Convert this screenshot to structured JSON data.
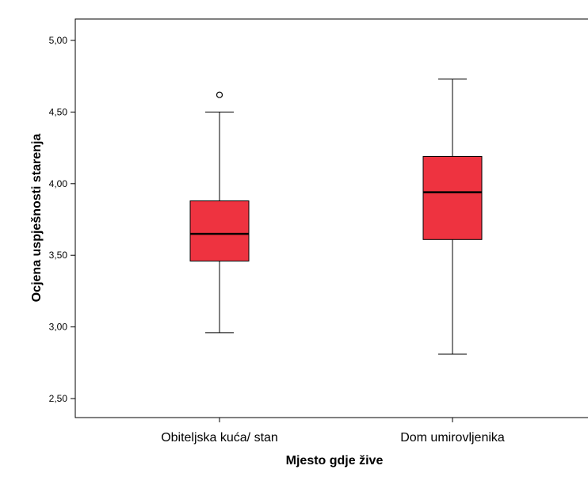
{
  "chart_data": {
    "type": "box",
    "title": "",
    "xlabel": "Mjesto gdje žive",
    "ylabel": "Ocjena uspješnosti starenja",
    "ylim": [
      2.3,
      5.15
    ],
    "yticks": [
      2.5,
      3.0,
      3.5,
      4.0,
      4.5,
      5.0
    ],
    "ytick_labels": [
      "2,50",
      "3,00",
      "3,50",
      "4,00",
      "4,50",
      "5,00"
    ],
    "grid": false,
    "box_color": "#ee3340",
    "categories": [
      "Obiteljska kuća/ stan",
      "Dom umirovljenika"
    ],
    "boxes": [
      {
        "whisker_low": 2.96,
        "q1": 3.46,
        "median": 3.65,
        "q3": 3.88,
        "whisker_high": 4.5,
        "outliers": [
          4.62
        ]
      },
      {
        "whisker_low": 2.81,
        "q1": 3.61,
        "median": 3.94,
        "q3": 4.19,
        "whisker_high": 4.73,
        "outliers": []
      }
    ]
  }
}
